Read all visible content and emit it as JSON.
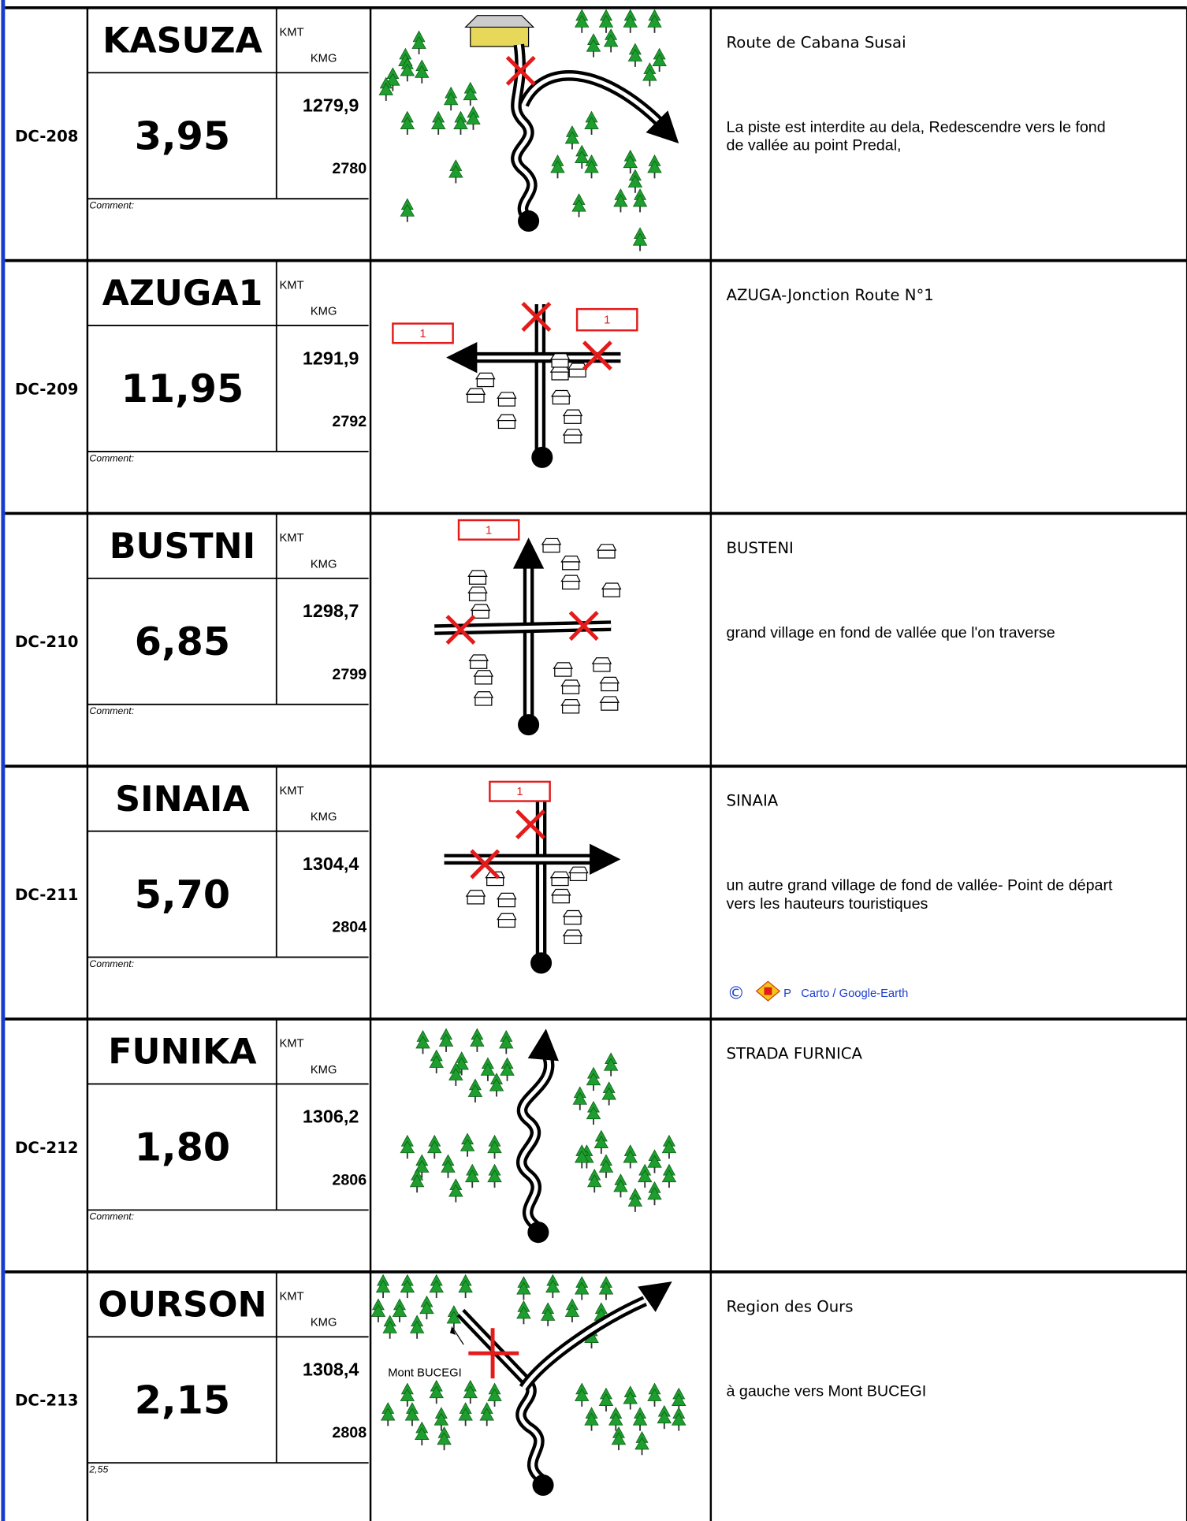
{
  "rows": [
    {
      "code": "DC-208",
      "name": "KASUZA",
      "kmt_label": "KMT",
      "kmg_label": "KMG",
      "distance": "3,95",
      "kmt": "1279,9",
      "kmg": "2780",
      "comment": "Comment:",
      "title": "Route de Cabana Susai",
      "text": [
        "La piste est interdite au dela,  Redescendre vers le fond",
        "de vallée au point Predal,"
      ]
    },
    {
      "code": "DC-209",
      "name": "AZUGA1",
      "kmt_label": "KMT",
      "kmg_label": "KMG",
      "distance": "11,95",
      "kmt": "1291,9",
      "kmg": "2792",
      "comment": "Comment:",
      "title": "AZUGA-Jonction Route N°1",
      "text": [],
      "map_labels": [
        "1",
        "1"
      ]
    },
    {
      "code": "DC-210",
      "name": "BUSTNI",
      "kmt_label": "KMT",
      "kmg_label": "KMG",
      "distance": "6,85",
      "kmt": "1298,7",
      "kmg": "2799",
      "comment": "Comment:",
      "title": "BUSTENI",
      "text": [
        "grand village en fond de vallée que l'on traverse"
      ],
      "map_labels": [
        "1"
      ]
    },
    {
      "code": "DC-211",
      "name": "SINAIA",
      "kmt_label": "KMT",
      "kmg_label": "KMG",
      "distance": "5,70",
      "kmt": "1304,4",
      "kmg": "2804",
      "comment": "Comment:",
      "title": "SINAIA",
      "text": [
        "un autre grand village de fond de vallée- Point de départ",
        "vers les hauteurs touristiques"
      ],
      "map_labels": [
        "1"
      ],
      "credit": {
        "symbol": "©",
        "letter": "P",
        "text": "Carto / Google-Earth"
      }
    },
    {
      "code": "DC-212",
      "name": "FUNIKA",
      "kmt_label": "KMT",
      "kmg_label": "KMG",
      "distance": "1,80",
      "kmt": "1306,2",
      "kmg": "2806",
      "comment": "Comment:",
      "title": "STRADA FURNICA",
      "text": []
    },
    {
      "code": "DC-213",
      "name": "OURSON",
      "kmt_label": "KMT",
      "kmg_label": "KMG",
      "distance": "2,15",
      "kmt": "1308,4",
      "kmg": "2808",
      "comment": "2,55",
      "title": "Region des Ours",
      "text": [
        "à gauche vers Mont BUCEGI"
      ],
      "map_labels": [
        "Mont BUCEGI"
      ]
    }
  ]
}
